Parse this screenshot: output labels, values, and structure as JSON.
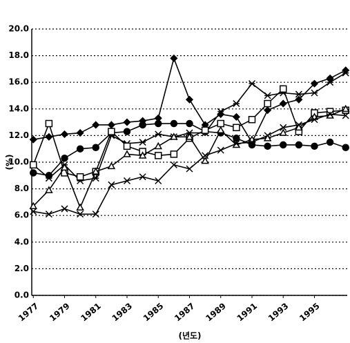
{
  "chart_data": {
    "type": "line",
    "x_label": "(년도)",
    "y_label": "(%)",
    "x": [
      1977,
      1978,
      1979,
      1980,
      1981,
      1982,
      1983,
      1984,
      1985,
      1986,
      1987,
      1988,
      1989,
      1990,
      1991,
      1992,
      1993,
      1994,
      1995,
      1996,
      1997
    ],
    "xlim": [
      1976.9,
      1997.1
    ],
    "xticks": [
      1977,
      1979,
      1981,
      1983,
      1985,
      1987,
      1989,
      1991,
      1993,
      1995
    ],
    "ylim": [
      0,
      20
    ],
    "yticks": [
      {
        "value": 0,
        "label": "0.0"
      },
      {
        "value": 2,
        "label": "2.0"
      },
      {
        "value": 4,
        "label": "4.0"
      },
      {
        "value": 6,
        "label": "6.0"
      },
      {
        "value": 8,
        "label": "8.0"
      },
      {
        "value": 10,
        "label": "10.0"
      },
      {
        "value": 12,
        "label": "12.0"
      },
      {
        "value": 14,
        "label": "14.0"
      },
      {
        "value": 16,
        "label": "16.0"
      },
      {
        "value": 18,
        "label": "18.0"
      },
      {
        "value": 20,
        "label": "20.0"
      }
    ],
    "grid": true,
    "series": [
      {
        "marker": "diamond",
        "color": "#000000",
        "values": [
          11.7,
          11.9,
          12.1,
          12.2,
          12.8,
          12.8,
          13.0,
          13.1,
          13.3,
          17.8,
          14.7,
          12.8,
          13.6,
          13.4,
          11.5,
          13.9,
          14.4,
          14.7,
          15.9,
          16.3,
          16.9
        ]
      },
      {
        "marker": "circle",
        "color": "#000000",
        "values": [
          9.2,
          9.0,
          10.3,
          11.0,
          11.1,
          12.2,
          12.3,
          12.8,
          12.9,
          12.9,
          12.9,
          12.3,
          12.2,
          11.8,
          11.3,
          11.2,
          11.3,
          11.3,
          11.2,
          11.5,
          11.1
        ]
      },
      {
        "marker": "asterisk",
        "color": "#000000",
        "values": [
          9.8,
          8.8,
          9.8,
          8.6,
          8.8,
          12.0,
          11.4,
          11.5,
          12.1,
          11.9,
          12.2,
          12.2,
          13.8,
          14.4,
          15.9,
          15.0,
          15.2,
          15.1,
          15.2,
          16.0,
          16.7
        ]
      },
      {
        "marker": "square",
        "color": "#000000",
        "values": [
          9.8,
          12.9,
          9.2,
          8.9,
          9.3,
          12.3,
          11.2,
          10.8,
          10.5,
          10.6,
          11.8,
          12.4,
          12.9,
          12.6,
          13.2,
          14.4,
          15.5,
          12.3,
          13.7,
          13.8,
          13.9
        ]
      },
      {
        "marker": "triangle",
        "color": "#000000",
        "values": [
          6.7,
          7.9,
          9.6,
          6.6,
          9.3,
          9.7,
          10.6,
          10.5,
          11.2,
          11.9,
          11.9,
          10.1,
          12.4,
          11.3,
          11.7,
          11.8,
          12.2,
          12.6,
          13.4,
          13.5,
          14.0
        ]
      },
      {
        "marker": "x",
        "color": "#000000",
        "values": [
          6.3,
          6.1,
          6.5,
          6.1,
          6.1,
          8.3,
          8.6,
          8.9,
          8.6,
          9.8,
          9.5,
          10.5,
          10.9,
          11.4,
          11.5,
          12.0,
          12.6,
          12.8,
          13.2,
          13.6,
          13.5
        ]
      }
    ]
  }
}
